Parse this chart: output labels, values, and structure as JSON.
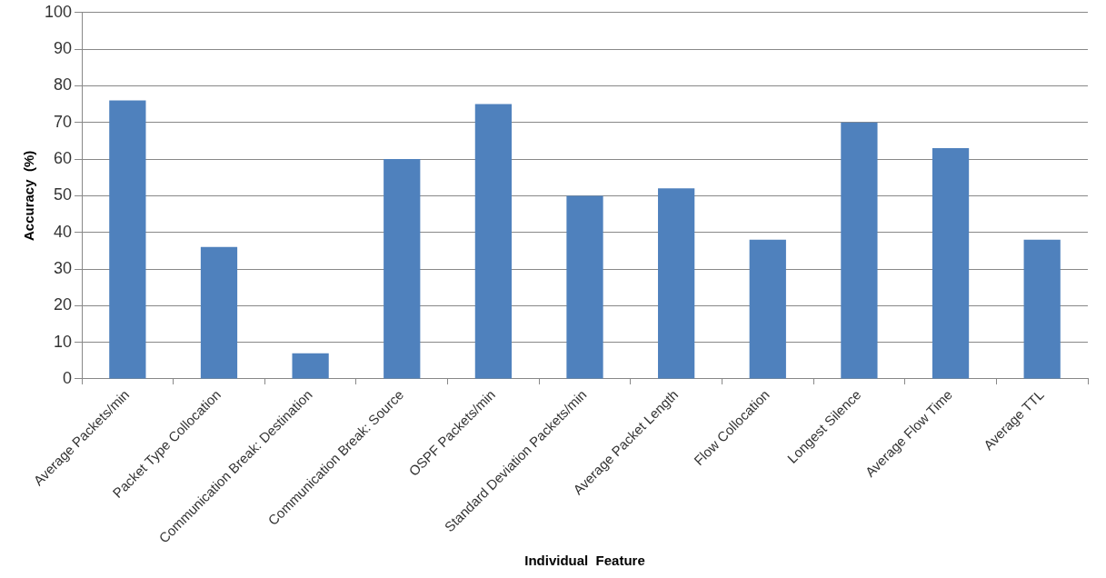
{
  "chart_data": {
    "type": "bar",
    "xlabel": "Individual  Feature",
    "ylabel": "Accuracy  (%)",
    "categories": [
      "Average Packets/min",
      "Packet Type Collocation",
      "Communication Break: Destination",
      "Communication Break: Source",
      "OSPF Packets/min",
      "Standard Deviation Packets/min",
      "Average Packet Length",
      "Flow Collocation",
      "Longest Silence",
      "Average Flow Time",
      "Average TTL"
    ],
    "values": [
      76,
      36,
      7,
      60,
      75,
      50,
      52,
      38,
      70,
      63,
      38
    ],
    "color": "#4f81bd",
    "ylim": [
      0,
      100
    ],
    "yticks": [
      0,
      10,
      20,
      30,
      40,
      50,
      60,
      70,
      80,
      90,
      100
    ],
    "grid": "y",
    "legend": false
  }
}
